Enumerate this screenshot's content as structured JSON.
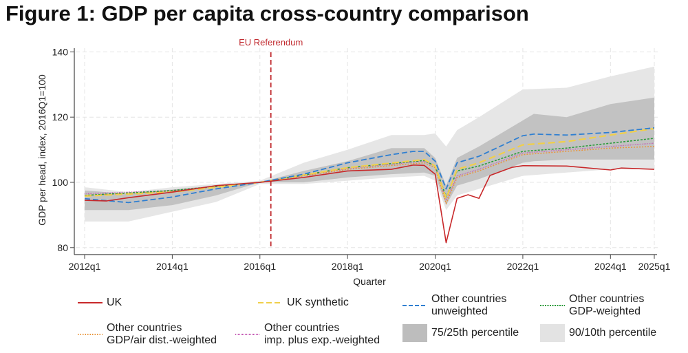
{
  "title": "Figure 1: GDP per capita cross-country comparison",
  "chart_data": {
    "type": "line",
    "xlabel": "Quarter",
    "ylabel": "GDP per head, index, 2016Q1=100",
    "ylim": [
      80,
      140
    ],
    "yticks": [
      "80",
      "100",
      "120",
      "140"
    ],
    "xticks": [
      "2012q1",
      "2014q1",
      "2016q1",
      "2018q1",
      "2020q1",
      "2022q1",
      "2024q1",
      "2025q1"
    ],
    "grid": true,
    "legend_position": "bottom",
    "annotation": {
      "label": "EU Referendum",
      "x": "2016q2",
      "color": "#c0282d"
    },
    "bands": [
      {
        "name": "90/10th percentile",
        "color": "#e6e6e6",
        "points": [
          [
            "2012q1",
            88,
            98.5
          ],
          [
            "2013q1",
            88,
            97
          ],
          [
            "2014q1",
            91,
            98.5
          ],
          [
            "2015q1",
            94,
            99.5
          ],
          [
            "2016q1",
            99.5,
            100.5
          ],
          [
            "2017q1",
            99.5,
            106
          ],
          [
            "2018q1",
            100.5,
            110
          ],
          [
            "2019q1",
            101.5,
            114.5
          ],
          [
            "2019q4",
            102,
            114.5
          ],
          [
            "2020q1",
            100.5,
            115
          ],
          [
            "2020q2",
            91.5,
            111
          ],
          [
            "2020q3",
            96,
            116
          ],
          [
            "2021q1",
            98,
            120
          ],
          [
            "2022q1",
            102,
            128.5
          ],
          [
            "2023q1",
            103,
            129
          ],
          [
            "2024q1",
            104,
            132.5
          ],
          [
            "2025q1",
            104,
            135.5
          ]
        ]
      },
      {
        "name": "75/25th percentile",
        "color": "#c2c2c2",
        "points": [
          [
            "2012q1",
            91.5,
            97.5
          ],
          [
            "2013q1",
            91.5,
            96.5
          ],
          [
            "2014q1",
            93,
            97.8
          ],
          [
            "2015q1",
            96,
            99
          ],
          [
            "2016q1",
            100,
            100
          ],
          [
            "2017q1",
            100,
            103.5
          ],
          [
            "2018q1",
            101.5,
            106.5
          ],
          [
            "2019q1",
            102.5,
            110.5
          ],
          [
            "2019q4",
            103,
            110.5
          ],
          [
            "2020q1",
            102,
            107.5
          ],
          [
            "2020q2",
            93,
            99
          ],
          [
            "2020q3",
            99,
            107.5
          ],
          [
            "2021q1",
            101,
            111
          ],
          [
            "2022q1",
            106,
            119
          ],
          [
            "2022q2",
            106.5,
            121
          ],
          [
            "2023q1",
            107,
            120
          ],
          [
            "2024q1",
            107,
            124
          ],
          [
            "2025q1",
            107,
            126
          ]
        ]
      }
    ],
    "series": [
      {
        "name": "Other countries\nGDP/air dist.-weighted",
        "color": "#e8963c",
        "dash": "2 2",
        "width": 1.5,
        "points": [
          [
            "2012q1",
            96
          ],
          [
            "2014q1",
            97.3
          ],
          [
            "2016q1",
            100
          ],
          [
            "2018q1",
            104
          ],
          [
            "2019q4",
            106
          ],
          [
            "2020q1",
            104.5
          ],
          [
            "2020q2",
            93.5
          ],
          [
            "2020q3",
            101.5
          ],
          [
            "2021q1",
            103.5
          ],
          [
            "2022q1",
            108.5
          ],
          [
            "2023q1",
            109.5
          ],
          [
            "2024q1",
            110.5
          ],
          [
            "2025q1",
            111
          ]
        ]
      },
      {
        "name": "Other countries\nimp. plus exp.-weighted",
        "color": "#c45ab3",
        "dash": "1 1.5",
        "width": 1.5,
        "points": [
          [
            "2012q1",
            96.5
          ],
          [
            "2014q1",
            97.5
          ],
          [
            "2016q1",
            100
          ],
          [
            "2018q1",
            104.3
          ],
          [
            "2019q4",
            106.5
          ],
          [
            "2020q1",
            105
          ],
          [
            "2020q2",
            94.5
          ],
          [
            "2020q3",
            102
          ],
          [
            "2021q1",
            104
          ],
          [
            "2022q1",
            109
          ],
          [
            "2023q1",
            110
          ],
          [
            "2024q1",
            111
          ],
          [
            "2025q1",
            112
          ]
        ]
      },
      {
        "name": "Other countries\nGDP-weighted",
        "color": "#2a9a3a",
        "dash": "3 2",
        "width": 1.6,
        "points": [
          [
            "2012q1",
            96
          ],
          [
            "2014q1",
            97.5
          ],
          [
            "2016q1",
            100
          ],
          [
            "2018q1",
            104.5
          ],
          [
            "2019q4",
            106.7
          ],
          [
            "2020q1",
            105
          ],
          [
            "2020q2",
            95.5
          ],
          [
            "2020q3",
            103.5
          ],
          [
            "2021q1",
            105
          ],
          [
            "2022q1",
            109.5
          ],
          [
            "2023q1",
            110.5
          ],
          [
            "2024q1",
            112
          ],
          [
            "2025q1",
            113.5
          ]
        ]
      },
      {
        "name": "UK synthetic",
        "color": "#f0cf4a",
        "dash": "10 5",
        "width": 2.2,
        "points": [
          [
            "2012q1",
            95.8
          ],
          [
            "2014q1",
            97
          ],
          [
            "2016q1",
            100
          ],
          [
            "2018q1",
            104.5
          ],
          [
            "2019q4",
            107
          ],
          [
            "2020q1",
            105
          ],
          [
            "2020q2",
            95
          ],
          [
            "2020q3",
            104
          ],
          [
            "2021q1",
            106
          ],
          [
            "2022q1",
            111.5
          ],
          [
            "2023q1",
            112.5
          ],
          [
            "2024q1",
            114.5
          ],
          [
            "2025q1",
            116.5
          ]
        ]
      },
      {
        "name": "Other countries\nunweighted",
        "color": "#2f7fd1",
        "dash": "8 4",
        "width": 1.8,
        "points": [
          [
            "2012q1",
            95
          ],
          [
            "2013q1",
            93.8
          ],
          [
            "2014q1",
            95.5
          ],
          [
            "2015q1",
            98
          ],
          [
            "2016q1",
            100
          ],
          [
            "2017q1",
            102.5
          ],
          [
            "2018q1",
            106
          ],
          [
            "2019q1",
            108.5
          ],
          [
            "2019q3",
            109.5
          ],
          [
            "2019q4",
            109.5
          ],
          [
            "2020q1",
            106.5
          ],
          [
            "2020q2",
            98
          ],
          [
            "2020q3",
            106
          ],
          [
            "2021q1",
            108
          ],
          [
            "2022q1",
            114.3
          ],
          [
            "2022q2",
            114.8
          ],
          [
            "2023q1",
            114.5
          ],
          [
            "2024q1",
            115.3
          ],
          [
            "2025q1",
            116.7
          ]
        ]
      },
      {
        "name": "UK",
        "color": "#c8282a",
        "dash": "",
        "width": 1.6,
        "points": [
          [
            "2012q1",
            94.5
          ],
          [
            "2012q3",
            94.3
          ],
          [
            "2013q1",
            95.3
          ],
          [
            "2014q1",
            97
          ],
          [
            "2015q1",
            99
          ],
          [
            "2016q1",
            100
          ],
          [
            "2017q1",
            101.5
          ],
          [
            "2018q1",
            103.5
          ],
          [
            "2019q1",
            104
          ],
          [
            "2019q3",
            105.3
          ],
          [
            "2019q4",
            105.2
          ],
          [
            "2020q1",
            102.5
          ],
          [
            "2020q2",
            81.5
          ],
          [
            "2020q3",
            95.1
          ],
          [
            "2020q4",
            96.2
          ],
          [
            "2021q1",
            95.1
          ],
          [
            "2021q2",
            102.1
          ],
          [
            "2021q4",
            104.6
          ],
          [
            "2022q1",
            105.1
          ],
          [
            "2023q1",
            105
          ],
          [
            "2024q1",
            103.8
          ],
          [
            "2024q2",
            104.4
          ],
          [
            "2025q1",
            104
          ]
        ]
      }
    ]
  },
  "legend": [
    {
      "label": "UK",
      "kind": "line",
      "color": "#c8282a",
      "dash": ""
    },
    {
      "label": "UK synthetic",
      "kind": "line",
      "color": "#f0cf4a",
      "dash": "8 4"
    },
    {
      "label": "Other countries\nunweighted",
      "kind": "line",
      "color": "#2f7fd1",
      "dash": "6 3"
    },
    {
      "label": "Other countries\nGDP-weighted",
      "kind": "line",
      "color": "#2a9a3a",
      "dash": "2 1.5"
    },
    {
      "label": "Other countries\nGDP/air dist.-weighted",
      "kind": "line",
      "color": "#e8963c",
      "dash": "1.5 2"
    },
    {
      "label": "Other countries\nimp. plus exp.-weighted",
      "kind": "line",
      "color": "#c45ab3",
      "dash": "1 1"
    },
    {
      "label": "75/25th percentile",
      "kind": "box",
      "color": "#bdbdbd"
    },
    {
      "label": "90/10th percentile",
      "kind": "box",
      "color": "#e3e3e3"
    }
  ]
}
